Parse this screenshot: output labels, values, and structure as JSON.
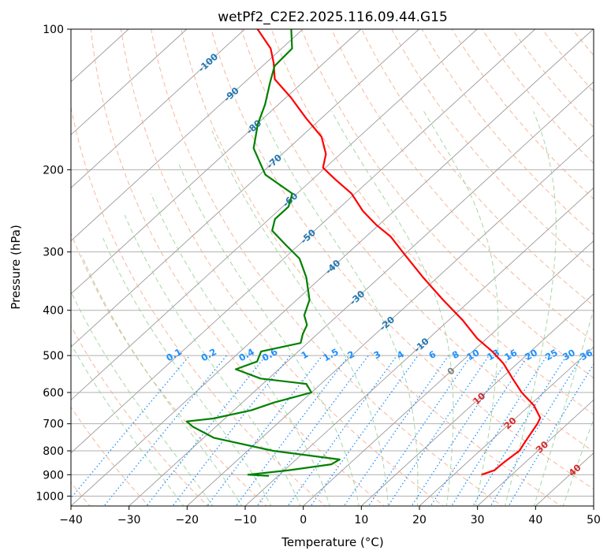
{
  "chart_data": {
    "type": "line",
    "subtype": "skew-T log-P diagram",
    "title": "wetPf2_C2E2.2025.116.09.44.G15",
    "xlabel": "Temperature (°C)",
    "ylabel": "Pressure (hPa)",
    "xlim": [
      -40,
      50
    ],
    "ylim": [
      1050,
      100
    ],
    "y_scale": "log",
    "x_ticks": [
      "−40",
      "−30",
      "−20",
      "−10",
      "0",
      "10",
      "20",
      "30",
      "40",
      "50"
    ],
    "y_ticks": [
      {
        "p": 100,
        "label": "100"
      },
      {
        "p": 200,
        "label": "200"
      },
      {
        "p": 300,
        "label": "300"
      },
      {
        "p": 400,
        "label": "400"
      },
      {
        "p": 500,
        "label": "500"
      },
      {
        "p": 600,
        "label": "600"
      },
      {
        "p": 700,
        "label": "700"
      },
      {
        "p": 800,
        "label": "800"
      },
      {
        "p": 900,
        "label": "900"
      },
      {
        "p": 1000,
        "label": "1000"
      }
    ],
    "grid": true,
    "colors": {
      "temperature": "#ff0000",
      "dewpoint": "#008000",
      "isotherm": "#9a9a9a",
      "dry_adiabat": "#f4a582",
      "moist_adiabat": "#98d098",
      "mixing_ratio": "#1e90ff",
      "isotherm_label": "#1f77b4",
      "isotherm_label_warm": "#d62728",
      "isotherm_label_zero": "#808080"
    },
    "isotherm_labels": [
      {
        "t": -100,
        "p": 118,
        "text": "-100"
      },
      {
        "t": -90,
        "p": 138,
        "text": "-90"
      },
      {
        "t": -80,
        "p": 162,
        "text": "-80"
      },
      {
        "t": -70,
        "p": 192,
        "text": "-70"
      },
      {
        "t": -60,
        "p": 232,
        "text": "-60"
      },
      {
        "t": -50,
        "p": 278,
        "text": "-50"
      },
      {
        "t": -40,
        "p": 323,
        "text": "-40"
      },
      {
        "t": -30,
        "p": 376,
        "text": "-30"
      },
      {
        "t": -20,
        "p": 427,
        "text": "-20"
      },
      {
        "t": -10,
        "p": 475,
        "text": "-10"
      },
      {
        "t": 0,
        "p": 540,
        "text": "0"
      },
      {
        "t": 10,
        "p": 618,
        "text": "10"
      },
      {
        "t": 20,
        "p": 698,
        "text": "20"
      },
      {
        "t": 30,
        "p": 785,
        "text": "30"
      },
      {
        "t": 40,
        "p": 880,
        "text": "40"
      }
    ],
    "mixing_ratio_labels": [
      {
        "w": 0.1,
        "text": "0.1",
        "t_at_label": -22
      },
      {
        "w": 0.2,
        "text": "0.2",
        "t_at_label": -16
      },
      {
        "w": 0.4,
        "text": "0.4",
        "t_at_label": -9.5
      },
      {
        "w": 0.6,
        "text": "0.6",
        "t_at_label": -5.5
      },
      {
        "w": 1,
        "text": "1",
        "t_at_label": 0.5
      },
      {
        "w": 1.5,
        "text": "1.5",
        "t_at_label": 5
      },
      {
        "w": 2,
        "text": "2",
        "t_at_label": 8.5
      },
      {
        "w": 3,
        "text": "3",
        "t_at_label": 13
      },
      {
        "w": 4,
        "text": "4",
        "t_at_label": 17
      },
      {
        "w": 6,
        "text": "6",
        "t_at_label": 22.5
      },
      {
        "w": 8,
        "text": "8",
        "t_at_label": 26.5
      },
      {
        "w": 10,
        "text": "10",
        "t_at_label": 29.5
      },
      {
        "w": 13,
        "text": "13",
        "t_at_label": 33
      },
      {
        "w": 16,
        "text": "16",
        "t_at_label": 36
      },
      {
        "w": 20,
        "text": "20",
        "t_at_label": 39.5
      },
      {
        "w": 25,
        "text": "25",
        "t_at_label": 43
      },
      {
        "w": 30,
        "text": "30",
        "t_at_label": 46
      },
      {
        "w": 36,
        "text": "36",
        "t_at_label": 49
      }
    ],
    "series": [
      {
        "name": "temperature",
        "points": [
          {
            "p": 900,
            "t": 24.8
          },
          {
            "p": 880,
            "t": 26.2
          },
          {
            "p": 850,
            "t": 26.3
          },
          {
            "p": 800,
            "t": 26.8
          },
          {
            "p": 760,
            "t": 26.0
          },
          {
            "p": 700,
            "t": 24.8
          },
          {
            "p": 680,
            "t": 24.2
          },
          {
            "p": 640,
            "t": 20.8
          },
          {
            "p": 600,
            "t": 16.2
          },
          {
            "p": 560,
            "t": 12.0
          },
          {
            "p": 520,
            "t": 7.6
          },
          {
            "p": 490,
            "t": 3.4
          },
          {
            "p": 460,
            "t": -1.6
          },
          {
            "p": 420,
            "t": -7.6
          },
          {
            "p": 380,
            "t": -14.8
          },
          {
            "p": 340,
            "t": -22.5
          },
          {
            "p": 300,
            "t": -30.8
          },
          {
            "p": 278,
            "t": -35.8
          },
          {
            "p": 262,
            "t": -40.6
          },
          {
            "p": 245,
            "t": -45.4
          },
          {
            "p": 225,
            "t": -50.6
          },
          {
            "p": 210,
            "t": -56.0
          },
          {
            "p": 198,
            "t": -60.4
          },
          {
            "p": 185,
            "t": -62.5
          },
          {
            "p": 170,
            "t": -66.5
          },
          {
            "p": 155,
            "t": -72.7
          },
          {
            "p": 140,
            "t": -79.2
          },
          {
            "p": 128,
            "t": -85.4
          },
          {
            "p": 118,
            "t": -88.7
          },
          {
            "p": 110,
            "t": -91.9
          },
          {
            "p": 100,
            "t": -97.8
          }
        ]
      },
      {
        "name": "dewpoint",
        "points": [
          {
            "p": 905,
            "t": -11.6
          },
          {
            "p": 900,
            "t": -15.4
          },
          {
            "p": 880,
            "t": -9.2
          },
          {
            "p": 855,
            "t": -3.0
          },
          {
            "p": 835,
            "t": -2.5
          },
          {
            "p": 800,
            "t": -15.6
          },
          {
            "p": 750,
            "t": -28.3
          },
          {
            "p": 710,
            "t": -34.0
          },
          {
            "p": 692,
            "t": -36.0
          },
          {
            "p": 682,
            "t": -32.0
          },
          {
            "p": 655,
            "t": -27.0
          },
          {
            "p": 630,
            "t": -24.5
          },
          {
            "p": 600,
            "t": -20.0
          },
          {
            "p": 575,
            "t": -22.5
          },
          {
            "p": 560,
            "t": -31.4
          },
          {
            "p": 535,
            "t": -37.4
          },
          {
            "p": 515,
            "t": -35.2
          },
          {
            "p": 490,
            "t": -36.4
          },
          {
            "p": 470,
            "t": -31.2
          },
          {
            "p": 450,
            "t": -32.5
          },
          {
            "p": 430,
            "t": -33.5
          },
          {
            "p": 410,
            "t": -35.8
          },
          {
            "p": 380,
            "t": -37.8
          },
          {
            "p": 340,
            "t": -42.6
          },
          {
            "p": 310,
            "t": -47.3
          },
          {
            "p": 290,
            "t": -52.2
          },
          {
            "p": 270,
            "t": -57.3
          },
          {
            "p": 255,
            "t": -59.0
          },
          {
            "p": 240,
            "t": -59.0
          },
          {
            "p": 225,
            "t": -60.8
          },
          {
            "p": 205,
            "t": -69.0
          },
          {
            "p": 180,
            "t": -76.0
          },
          {
            "p": 160,
            "t": -79.8
          },
          {
            "p": 145,
            "t": -82.3
          },
          {
            "p": 130,
            "t": -85.6
          },
          {
            "p": 120,
            "t": -87.9
          },
          {
            "p": 110,
            "t": -88.2
          },
          {
            "p": 100,
            "t": -92.0
          }
        ]
      }
    ]
  }
}
